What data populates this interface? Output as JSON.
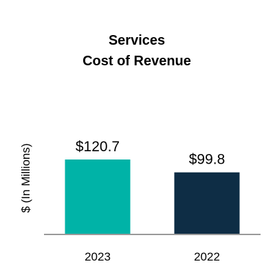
{
  "chart_data": {
    "type": "bar",
    "title": [
      "Services",
      "Cost of Revenue"
    ],
    "ylabel": "$ (In Millions)",
    "xlabel": "",
    "categories": [
      "2023",
      "2022"
    ],
    "values": [
      120.7,
      99.8
    ],
    "data_labels": [
      "$120.7",
      "$99.8"
    ],
    "bar_colors": [
      "#00b3a7",
      "#0e2d45"
    ],
    "axis_color": "#999999",
    "ylim": [
      0,
      140
    ],
    "grid": false,
    "legend": "none"
  }
}
